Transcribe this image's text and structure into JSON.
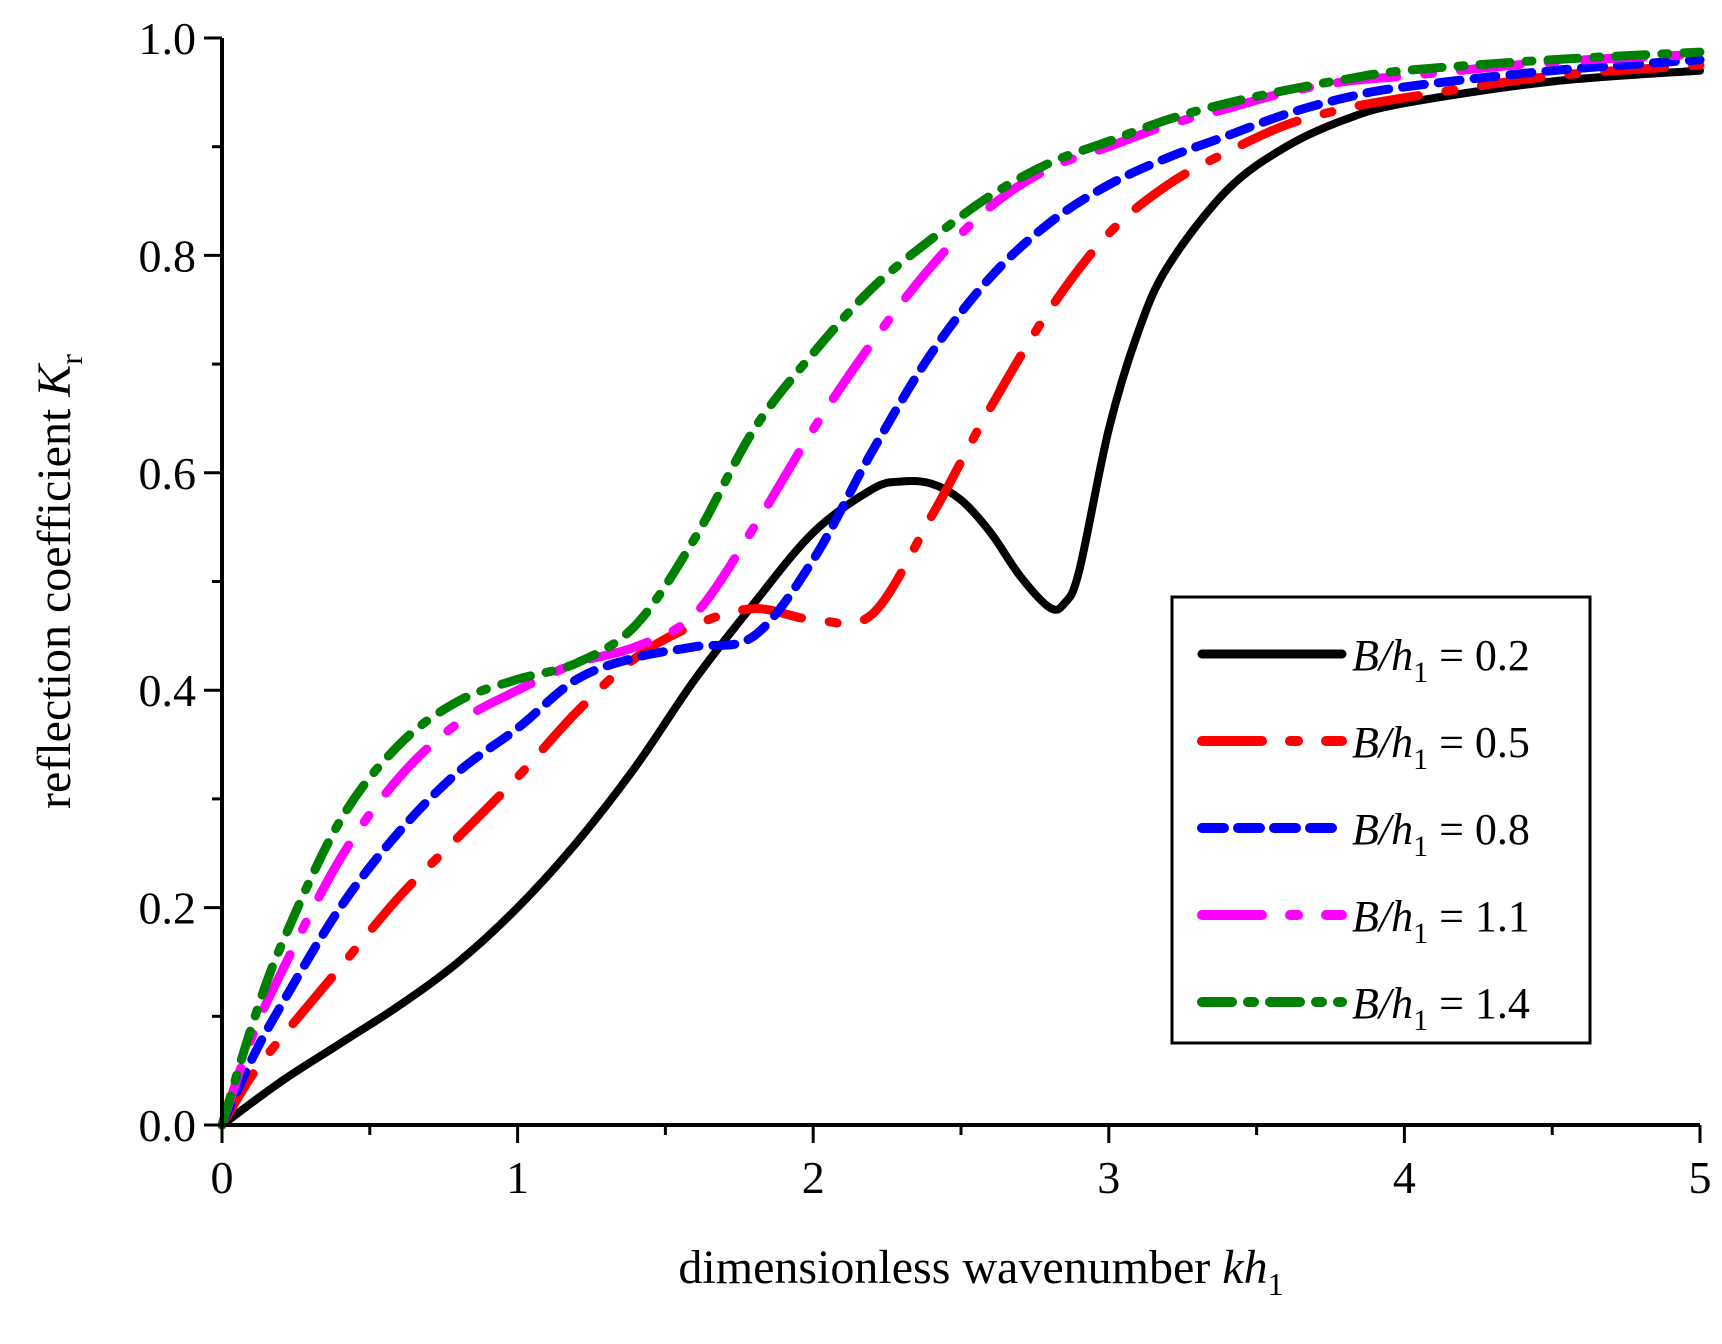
{
  "chart_data": {
    "type": "line",
    "title": "",
    "xlabel": {
      "main": "dimensionless wavenumber ",
      "var": "kh",
      "sub": "1"
    },
    "ylabel": {
      "main": "reflection coefficient ",
      "var": "K",
      "sub": "r"
    },
    "xlim": [
      0,
      5
    ],
    "ylim": [
      0,
      1
    ],
    "xticks": [
      0,
      1,
      2,
      3,
      4,
      5
    ],
    "xtick_labels": [
      "0",
      "1",
      "2",
      "3",
      "4",
      "5"
    ],
    "yticks": [
      0,
      0.2,
      0.4,
      0.6,
      0.8,
      1.0
    ],
    "ytick_labels": [
      "0.0",
      "0.2",
      "0.4",
      "0.6",
      "0.8",
      "1.0"
    ],
    "grid": false,
    "legend_position": "lower-right",
    "series": [
      {
        "name": "B/h1 = 0.2",
        "label_var": "B/h",
        "label_sub": "1",
        "label_value": " = 0.2",
        "color": "#000000",
        "dash": "solid",
        "x": [
          0,
          0.2,
          0.4,
          0.6,
          0.8,
          1.0,
          1.2,
          1.4,
          1.6,
          1.8,
          2.0,
          2.2,
          2.3,
          2.4,
          2.5,
          2.6,
          2.7,
          2.8,
          2.85,
          2.9,
          3.0,
          3.1,
          3.2,
          3.4,
          3.6,
          3.8,
          4.0,
          4.5,
          5.0
        ],
        "y": [
          0,
          0.04,
          0.075,
          0.11,
          0.15,
          0.2,
          0.26,
          0.33,
          0.41,
          0.48,
          0.545,
          0.585,
          0.592,
          0.59,
          0.575,
          0.545,
          0.505,
          0.476,
          0.48,
          0.51,
          0.64,
          0.73,
          0.79,
          0.86,
          0.9,
          0.925,
          0.94,
          0.96,
          0.97
        ]
      },
      {
        "name": "B/h1 = 0.5",
        "label_var": "B/h",
        "label_sub": "1",
        "label_value": " = 0.5",
        "color": "#ff0000",
        "dash": "long-dash-dot",
        "x": [
          0,
          0.1,
          0.2,
          0.4,
          0.6,
          0.8,
          1.0,
          1.2,
          1.4,
          1.6,
          1.8,
          2.0,
          2.2,
          2.4,
          2.5,
          2.6,
          2.8,
          3.0,
          3.2,
          3.4,
          3.6,
          3.8,
          4.0,
          4.5,
          5.0
        ],
        "y": [
          0,
          0.045,
          0.08,
          0.145,
          0.21,
          0.265,
          0.32,
          0.38,
          0.43,
          0.46,
          0.475,
          0.465,
          0.47,
          0.56,
          0.61,
          0.66,
          0.75,
          0.82,
          0.865,
          0.895,
          0.92,
          0.935,
          0.945,
          0.965,
          0.975
        ]
      },
      {
        "name": "B/h1 = 0.8",
        "label_var": "B/h",
        "label_sub": "1",
        "label_value": " = 0.8",
        "color": "#0000ff",
        "dash": "short-dash",
        "x": [
          0,
          0.1,
          0.2,
          0.4,
          0.6,
          0.8,
          1.0,
          1.2,
          1.4,
          1.6,
          1.8,
          2.0,
          2.2,
          2.4,
          2.6,
          2.8,
          3.0,
          3.2,
          3.4,
          3.6,
          3.8,
          4.0,
          4.5,
          5.0
        ],
        "y": [
          0,
          0.06,
          0.11,
          0.2,
          0.27,
          0.325,
          0.365,
          0.41,
          0.43,
          0.44,
          0.45,
          0.52,
          0.62,
          0.71,
          0.78,
          0.83,
          0.865,
          0.89,
          0.91,
          0.93,
          0.945,
          0.955,
          0.97,
          0.98
        ]
      },
      {
        "name": "B/h1 = 1.1",
        "label_var": "B/h",
        "label_sub": "1",
        "label_value": " = 1.1",
        "color": "#ff00ff",
        "dash": "long-dash-dot",
        "x": [
          0,
          0.1,
          0.2,
          0.4,
          0.6,
          0.8,
          1.0,
          1.2,
          1.4,
          1.6,
          1.8,
          2.0,
          2.2,
          2.4,
          2.6,
          2.8,
          3.0,
          3.2,
          3.4,
          3.6,
          3.8,
          4.0,
          4.5,
          5.0
        ],
        "y": [
          0,
          0.08,
          0.14,
          0.245,
          0.32,
          0.37,
          0.4,
          0.425,
          0.44,
          0.47,
          0.55,
          0.64,
          0.72,
          0.79,
          0.845,
          0.88,
          0.9,
          0.92,
          0.935,
          0.95,
          0.96,
          0.965,
          0.978,
          0.985
        ]
      },
      {
        "name": "B/h1 = 1.4",
        "label_var": "B/h",
        "label_sub": "1",
        "label_value": " = 1.4",
        "color": "#008000",
        "dash": "dash-dot",
        "x": [
          0,
          0.1,
          0.2,
          0.4,
          0.6,
          0.8,
          1.0,
          1.2,
          1.4,
          1.6,
          1.8,
          2.0,
          2.2,
          2.4,
          2.6,
          2.8,
          3.0,
          3.2,
          3.4,
          3.6,
          3.8,
          4.0,
          4.5,
          5.0
        ],
        "y": [
          0,
          0.09,
          0.165,
          0.28,
          0.35,
          0.39,
          0.41,
          0.425,
          0.46,
          0.54,
          0.64,
          0.71,
          0.77,
          0.815,
          0.855,
          0.885,
          0.905,
          0.925,
          0.94,
          0.952,
          0.962,
          0.97,
          0.98,
          0.987
        ]
      }
    ]
  }
}
